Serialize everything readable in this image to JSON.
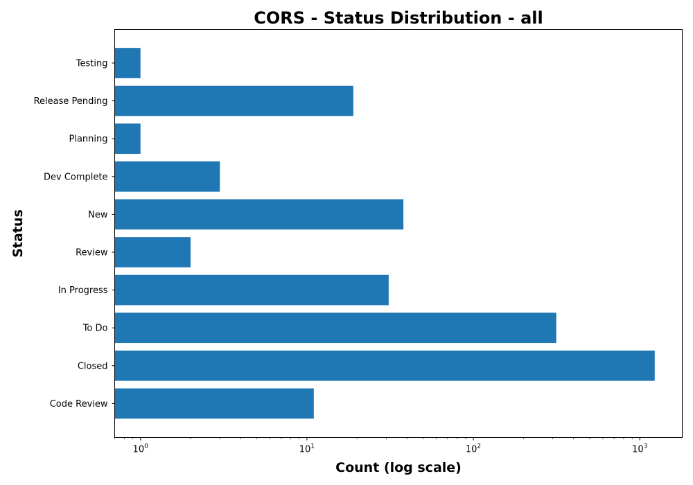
{
  "chart_data": {
    "type": "bar",
    "orientation": "horizontal",
    "title": "CORS - Status Distribution - all",
    "xlabel": "Count (log scale)",
    "ylabel": "Status",
    "xscale": "log",
    "xlim": [
      0.7,
      1800
    ],
    "xticks": [
      {
        "value": 1,
        "base": "10",
        "exp": "0"
      },
      {
        "value": 10,
        "base": "10",
        "exp": "1"
      },
      {
        "value": 100,
        "base": "10",
        "exp": "2"
      },
      {
        "value": 1000,
        "base": "10",
        "exp": "3"
      }
    ],
    "categories": [
      "Code Review",
      "Closed",
      "To Do",
      "In Progress",
      "Review",
      "New",
      "Dev Complete",
      "Planning",
      "Release Pending",
      "Testing"
    ],
    "values": [
      11,
      1230,
      315,
      31,
      2,
      38,
      3,
      1,
      19,
      1
    ],
    "color": "#1f77b4",
    "grid": false
  }
}
